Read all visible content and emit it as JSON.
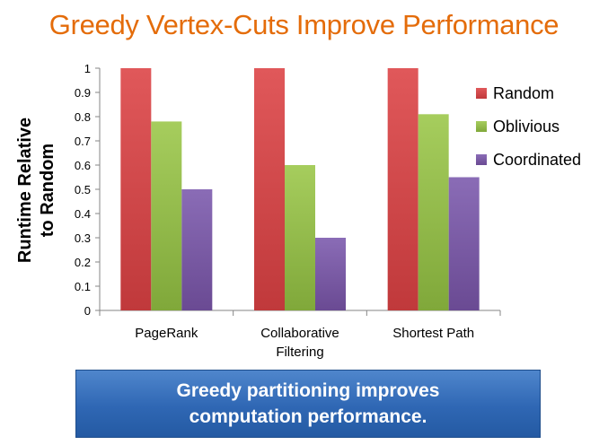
{
  "slide": {
    "title": "Greedy Vertex-Cuts Improve Performance",
    "callout_line1": "Greedy partitioning improves",
    "callout_line2": "computation performance."
  },
  "chart_data": {
    "type": "bar",
    "title": "",
    "ylabel_line1": "Runtime Relative",
    "ylabel_line2": "to Random",
    "xlabel": "",
    "ylim": [
      0,
      1
    ],
    "yticks": [
      "0",
      "0.1",
      "0.2",
      "0.3",
      "0.4",
      "0.5",
      "0.6",
      "0.7",
      "0.8",
      "0.9",
      "1"
    ],
    "grid": false,
    "legend_position": "right",
    "categories": [
      [
        "PageRank"
      ],
      [
        "Collaborative",
        "Filtering"
      ],
      [
        "Shortest Path"
      ]
    ],
    "series": [
      {
        "name": "Random",
        "values": [
          1.0,
          1.0,
          1.0
        ],
        "color": "#c0393b",
        "color_light": "#e0585a"
      },
      {
        "name": "Oblivious",
        "values": [
          0.78,
          0.6,
          0.81
        ],
        "color": "#80a83a",
        "color_light": "#a6cd5d"
      },
      {
        "name": "Coordinated",
        "values": [
          0.5,
          0.3,
          0.55
        ],
        "color": "#6a4a93",
        "color_light": "#8a6cb6"
      }
    ]
  }
}
